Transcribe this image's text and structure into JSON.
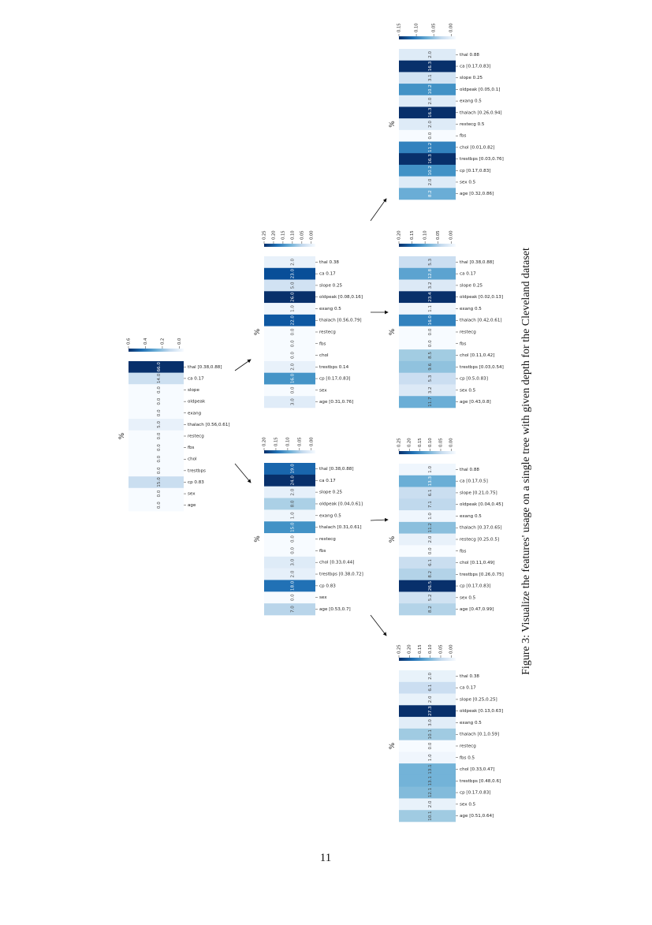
{
  "figure": {
    "caption": "Figure 3: Visualize the features' usage on a single tree with given depth for the Cleveland dataset",
    "page_number": "11",
    "nodes": [
      {
        "percent_label": "%",
        "colorbar_ticks": [
          "0.6",
          "0.4",
          "0.2",
          "0.0"
        ],
        "rows": [
          {
            "label": "thal [0.38,0.88]",
            "value": "66.0"
          },
          {
            "label": "ca 0.17",
            "value": "14.0"
          },
          {
            "label": "slope",
            "value": "0.0"
          },
          {
            "label": "oldpeak",
            "value": "0.0"
          },
          {
            "label": "exang",
            "value": "0.0"
          },
          {
            "label": "thalach [0.56,0.61]",
            "value": "5.0"
          },
          {
            "label": "restecg",
            "value": "0.0"
          },
          {
            "label": "fbs",
            "value": "0.0"
          },
          {
            "label": "chol",
            "value": "0.0"
          },
          {
            "label": "trestbps",
            "value": "0.0"
          },
          {
            "label": "cp 0.83",
            "value": "15.0"
          },
          {
            "label": "sex",
            "value": "0.0"
          },
          {
            "label": "age",
            "value": "0.0"
          }
        ]
      },
      {
        "percent_label": "%",
        "colorbar_ticks": [
          "0.25",
          "0.20",
          "0.15",
          "0.10",
          "0.05",
          "0.00"
        ],
        "rows": [
          {
            "label": "thal 0.38",
            "value": "2.0"
          },
          {
            "label": "ca 0.17",
            "value": "23.0"
          },
          {
            "label": "slope 0.25",
            "value": "5.0"
          },
          {
            "label": "oldpeak [0.08,0.16]",
            "value": "26.0"
          },
          {
            "label": "exang 0.5",
            "value": "1.0"
          },
          {
            "label": "thalach [0.56,0.79]",
            "value": "22.0"
          },
          {
            "label": "restecg",
            "value": "0.0"
          },
          {
            "label": "fbs",
            "value": "0.0"
          },
          {
            "label": "chol",
            "value": "0.0"
          },
          {
            "label": "trestbps 0.14",
            "value": "2.0"
          },
          {
            "label": "cp [0.17,0.83]",
            "value": "16.0"
          },
          {
            "label": "sex",
            "value": "0.0"
          },
          {
            "label": "age [0.31,0.76]",
            "value": "3.0"
          }
        ]
      },
      {
        "percent_label": "%",
        "colorbar_ticks": [
          "0.20",
          "0.15",
          "0.10",
          "0.05",
          "0.00"
        ],
        "rows": [
          {
            "label": "thal [0.38,0.88]",
            "value": "19.0"
          },
          {
            "label": "ca 0.17",
            "value": "24.0"
          },
          {
            "label": "slope 0.25",
            "value": "2.0"
          },
          {
            "label": "oldpeak [0.04,0.61]",
            "value": "8.0"
          },
          {
            "label": "exang 0.5",
            "value": "1.0"
          },
          {
            "label": "thalach [0.31,0.61]",
            "value": "15.0"
          },
          {
            "label": "restecg",
            "value": "0.0"
          },
          {
            "label": "fbs",
            "value": "0.0"
          },
          {
            "label": "chol [0.33,0.44]",
            "value": "3.0"
          },
          {
            "label": "trestbps [0.38,0.72]",
            "value": "2.0"
          },
          {
            "label": "cp 0.83",
            "value": "18.0"
          },
          {
            "label": "sex",
            "value": "0.0"
          },
          {
            "label": "age [0.53,0.7]",
            "value": "7.0"
          }
        ]
      },
      {
        "percent_label": "%",
        "colorbar_ticks": [
          "0.15",
          "0.10",
          "0.05",
          "0.00"
        ],
        "rows": [
          {
            "label": "thal 0.88",
            "value": "2.0"
          },
          {
            "label": "ca [0.17,0.83]",
            "value": "16.3"
          },
          {
            "label": "slope 0.25",
            "value": "3.1"
          },
          {
            "label": "oldpeak [0.05,0.1]",
            "value": "10.2"
          },
          {
            "label": "exang 0.5",
            "value": "2.0"
          },
          {
            "label": "thalach [0.26,0.94]",
            "value": "16.3"
          },
          {
            "label": "restecg 0.5",
            "value": "2.0"
          },
          {
            "label": "fbs",
            "value": "0.0"
          },
          {
            "label": "chol [0.01,0.82]",
            "value": "11.2"
          },
          {
            "label": "trestbps [0.03,0.76]",
            "value": "16.3"
          },
          {
            "label": "cp [0.17,0.83]",
            "value": "10.2"
          },
          {
            "label": "sex 0.5",
            "value": "2.0"
          },
          {
            "label": "age [0.32,0.86]",
            "value": "8.2"
          }
        ]
      },
      {
        "percent_label": "%",
        "colorbar_ticks": [
          "0.20",
          "0.15",
          "0.10",
          "0.05",
          "0.00"
        ],
        "rows": [
          {
            "label": "thal [0.38,0.88]",
            "value": "5.3"
          },
          {
            "label": "ca 0.17",
            "value": "12.8"
          },
          {
            "label": "slope 0.25",
            "value": "3.2"
          },
          {
            "label": "oldpeak [0.02,0.13]",
            "value": "23.4"
          },
          {
            "label": "exang 0.5",
            "value": "1.1"
          },
          {
            "label": "thalach [0.42,0.61]",
            "value": "16.0"
          },
          {
            "label": "restecg",
            "value": "0.0"
          },
          {
            "label": "fbs",
            "value": "0.0"
          },
          {
            "label": "chol [0.11,0.42]",
            "value": "8.5"
          },
          {
            "label": "trestbps [0.03,0.54]",
            "value": "9.6"
          },
          {
            "label": "cp [0.5,0.83]",
            "value": "5.3"
          },
          {
            "label": "sex 0.5",
            "value": "3.2"
          },
          {
            "label": "age [0.43,0.8]",
            "value": "11.7"
          }
        ]
      },
      {
        "percent_label": "%",
        "colorbar_ticks": [
          "0.25",
          "0.20",
          "0.15",
          "0.10",
          "0.05",
          "0.00"
        ],
        "rows": [
          {
            "label": "thal 0.88",
            "value": "1.0"
          },
          {
            "label": "ca [0.17,0.5]",
            "value": "13.3"
          },
          {
            "label": "slope [0.21,0.75]",
            "value": "6.1"
          },
          {
            "label": "oldpeak [0.04,0.45]",
            "value": "7.1"
          },
          {
            "label": "exang 0.5",
            "value": "1.0"
          },
          {
            "label": "thalach [0.37,0.65]",
            "value": "11.2"
          },
          {
            "label": "restecg [0.25,0.5]",
            "value": "2.0"
          },
          {
            "label": "fbs",
            "value": "0.0"
          },
          {
            "label": "chol [0.11,0.49]",
            "value": "6.1"
          },
          {
            "label": "trestbps [0.26,0.75]",
            "value": "8.2"
          },
          {
            "label": "cp [0.17,0.83]",
            "value": "26.5"
          },
          {
            "label": "sex 0.5",
            "value": "5.2"
          },
          {
            "label": "age [0.47,0.99]",
            "value": "8.2"
          }
        ]
      },
      {
        "percent_label": "%",
        "colorbar_ticks": [
          "0.25",
          "0.20",
          "0.15",
          "0.10",
          "0.05",
          "0.00"
        ],
        "rows": [
          {
            "label": "thal 0.38",
            "value": "2.0"
          },
          {
            "label": "ca 0.17",
            "value": "6.1"
          },
          {
            "label": "slope [0.25,0.25]",
            "value": "2.0"
          },
          {
            "label": "oldpeak [0.13,0.63]",
            "value": "27.3"
          },
          {
            "label": "exang 0.5",
            "value": "3.0"
          },
          {
            "label": "thalach [0.1,0.59]",
            "value": "10.1"
          },
          {
            "label": "restecg",
            "value": "0.0"
          },
          {
            "label": "fbs 0.5",
            "value": "1.0"
          },
          {
            "label": "chol [0.33,0.47]",
            "value": "13.1"
          },
          {
            "label": "trestbps [0.48,0.6]",
            "value": "13.1"
          },
          {
            "label": "cp [0.17,0.83]",
            "value": "12.1"
          },
          {
            "label": "sex 0.5",
            "value": "2.0"
          },
          {
            "label": "age [0.51,0.64]",
            "value": "10.1"
          }
        ]
      }
    ]
  }
}
